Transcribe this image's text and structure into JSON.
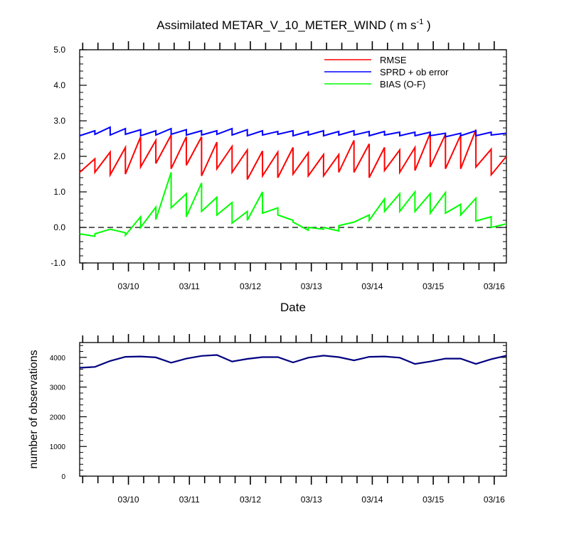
{
  "chart_data": [
    {
      "type": "line",
      "title": "Assimilated METAR_V_10_METER_WIND",
      "title_units": "( m s",
      "title_units_sup": "-1",
      "title_units_close": ")",
      "xlabel": "Date",
      "ylabel": "",
      "x_unit": "day (March)",
      "xlim": [
        9.2,
        16.2
      ],
      "ylim": [
        -1.0,
        5.0
      ],
      "y_ticks": [
        -1.0,
        0.0,
        1.0,
        2.0,
        3.0,
        4.0,
        5.0
      ],
      "y_tick_labels": [
        "-1.0",
        "0.0",
        "1.0",
        "2.0",
        "3.0",
        "4.0",
        "5.0"
      ],
      "x_ticks": [
        10,
        11,
        12,
        13,
        14,
        15,
        16
      ],
      "x_tick_labels": [
        "03/10",
        "03/11",
        "03/12",
        "03/13",
        "03/14",
        "03/15",
        "03/16"
      ],
      "zero_line": true,
      "grid": false,
      "legend_position": "top-right",
      "series": [
        {
          "name": "RMSE",
          "color": "#ff0000",
          "points": [
            [
              9.2,
              1.55
            ],
            [
              9.45,
              1.93
            ],
            [
              9.45,
              1.55
            ],
            [
              9.7,
              2.12
            ],
            [
              9.7,
              1.48
            ],
            [
              9.95,
              2.25
            ],
            [
              9.95,
              1.5
            ],
            [
              10.2,
              2.55
            ],
            [
              10.2,
              1.7
            ],
            [
              10.45,
              2.45
            ],
            [
              10.45,
              1.8
            ],
            [
              10.7,
              2.6
            ],
            [
              10.7,
              1.65
            ],
            [
              10.95,
              2.55
            ],
            [
              10.95,
              1.75
            ],
            [
              11.2,
              2.55
            ],
            [
              11.2,
              1.45
            ],
            [
              11.45,
              2.4
            ],
            [
              11.45,
              1.65
            ],
            [
              11.7,
              2.28
            ],
            [
              11.7,
              1.55
            ],
            [
              11.95,
              2.18
            ],
            [
              11.95,
              1.35
            ],
            [
              12.2,
              2.15
            ],
            [
              12.2,
              1.45
            ],
            [
              12.45,
              2.12
            ],
            [
              12.45,
              1.4
            ],
            [
              12.7,
              2.25
            ],
            [
              12.7,
              1.5
            ],
            [
              12.95,
              2.1
            ],
            [
              12.95,
              1.45
            ],
            [
              13.2,
              2.05
            ],
            [
              13.2,
              1.45
            ],
            [
              13.45,
              2.05
            ],
            [
              13.45,
              1.55
            ],
            [
              13.7,
              2.45
            ],
            [
              13.7,
              1.55
            ],
            [
              13.95,
              2.35
            ],
            [
              13.95,
              1.4
            ],
            [
              14.2,
              2.25
            ],
            [
              14.2,
              1.6
            ],
            [
              14.45,
              2.18
            ],
            [
              14.45,
              1.55
            ],
            [
              14.7,
              2.25
            ],
            [
              14.7,
              1.6
            ],
            [
              14.95,
              2.65
            ],
            [
              14.95,
              1.7
            ],
            [
              15.2,
              2.62
            ],
            [
              15.2,
              1.65
            ],
            [
              15.45,
              2.6
            ],
            [
              15.45,
              1.65
            ],
            [
              15.7,
              2.75
            ],
            [
              15.7,
              1.7
            ],
            [
              15.95,
              2.2
            ],
            [
              15.95,
              1.48
            ],
            [
              16.2,
              2.0
            ]
          ]
        },
        {
          "name": "SPRD + ob error",
          "color": "#0000ff",
          "points": [
            [
              9.2,
              2.58
            ],
            [
              9.45,
              2.72
            ],
            [
              9.45,
              2.62
            ],
            [
              9.7,
              2.82
            ],
            [
              9.7,
              2.6
            ],
            [
              9.95,
              2.78
            ],
            [
              9.95,
              2.62
            ],
            [
              10.2,
              2.75
            ],
            [
              10.2,
              2.58
            ],
            [
              10.45,
              2.72
            ],
            [
              10.45,
              2.6
            ],
            [
              10.7,
              2.78
            ],
            [
              10.7,
              2.62
            ],
            [
              10.95,
              2.75
            ],
            [
              10.95,
              2.6
            ],
            [
              11.2,
              2.72
            ],
            [
              11.2,
              2.6
            ],
            [
              11.45,
              2.72
            ],
            [
              11.45,
              2.62
            ],
            [
              11.7,
              2.78
            ],
            [
              11.7,
              2.6
            ],
            [
              11.95,
              2.75
            ],
            [
              11.95,
              2.58
            ],
            [
              12.2,
              2.72
            ],
            [
              12.2,
              2.6
            ],
            [
              12.45,
              2.7
            ],
            [
              12.45,
              2.62
            ],
            [
              12.7,
              2.72
            ],
            [
              12.7,
              2.58
            ],
            [
              12.95,
              2.7
            ],
            [
              12.95,
              2.6
            ],
            [
              13.2,
              2.72
            ],
            [
              13.2,
              2.58
            ],
            [
              13.45,
              2.7
            ],
            [
              13.45,
              2.6
            ],
            [
              13.7,
              2.72
            ],
            [
              13.7,
              2.6
            ],
            [
              13.95,
              2.7
            ],
            [
              13.95,
              2.58
            ],
            [
              14.2,
              2.7
            ],
            [
              14.2,
              2.6
            ],
            [
              14.45,
              2.68
            ],
            [
              14.45,
              2.58
            ],
            [
              14.7,
              2.68
            ],
            [
              14.7,
              2.58
            ],
            [
              14.95,
              2.68
            ],
            [
              14.95,
              2.58
            ],
            [
              15.2,
              2.65
            ],
            [
              15.2,
              2.55
            ],
            [
              15.45,
              2.65
            ],
            [
              15.45,
              2.58
            ],
            [
              15.7,
              2.72
            ],
            [
              15.7,
              2.58
            ],
            [
              15.95,
              2.68
            ],
            [
              15.95,
              2.6
            ],
            [
              16.2,
              2.65
            ]
          ]
        },
        {
          "name": "BIAS (O-F)",
          "color": "#00ff00",
          "points": [
            [
              9.2,
              -0.18
            ],
            [
              9.45,
              -0.25
            ],
            [
              9.45,
              -0.18
            ],
            [
              9.7,
              -0.05
            ],
            [
              9.95,
              -0.15
            ],
            [
              9.95,
              -0.22
            ],
            [
              10.2,
              0.3
            ],
            [
              10.2,
              0.0
            ],
            [
              10.45,
              0.57
            ],
            [
              10.45,
              0.22
            ],
            [
              10.7,
              1.55
            ],
            [
              10.7,
              0.55
            ],
            [
              10.95,
              0.95
            ],
            [
              10.95,
              0.3
            ],
            [
              11.2,
              1.25
            ],
            [
              11.2,
              0.45
            ],
            [
              11.45,
              0.85
            ],
            [
              11.45,
              0.35
            ],
            [
              11.7,
              0.7
            ],
            [
              11.7,
              0.12
            ],
            [
              11.95,
              0.45
            ],
            [
              11.95,
              0.2
            ],
            [
              12.2,
              1.0
            ],
            [
              12.2,
              0.4
            ],
            [
              12.45,
              0.55
            ],
            [
              12.45,
              0.35
            ],
            [
              12.7,
              0.2
            ],
            [
              12.7,
              0.15
            ],
            [
              12.95,
              -0.08
            ],
            [
              12.95,
              0.0
            ],
            [
              13.2,
              -0.05
            ],
            [
              13.2,
              0.0
            ],
            [
              13.45,
              -0.1
            ],
            [
              13.45,
              0.05
            ],
            [
              13.7,
              0.15
            ],
            [
              13.95,
              0.35
            ],
            [
              13.95,
              0.2
            ],
            [
              14.2,
              0.8
            ],
            [
              14.2,
              0.45
            ],
            [
              14.45,
              0.95
            ],
            [
              14.45,
              0.45
            ],
            [
              14.7,
              1.0
            ],
            [
              14.7,
              0.45
            ],
            [
              14.95,
              0.95
            ],
            [
              14.95,
              0.4
            ],
            [
              15.2,
              0.98
            ],
            [
              15.2,
              0.4
            ],
            [
              15.45,
              0.65
            ],
            [
              15.45,
              0.35
            ],
            [
              15.7,
              0.82
            ],
            [
              15.7,
              0.18
            ],
            [
              15.95,
              0.3
            ],
            [
              15.95,
              0.0
            ],
            [
              16.2,
              0.1
            ]
          ]
        }
      ]
    },
    {
      "type": "line",
      "title": "",
      "xlabel": "",
      "ylabel": "number of observations",
      "x_unit": "day (March)",
      "xlim": [
        9.2,
        16.2
      ],
      "ylim": [
        0,
        4500
      ],
      "y_ticks": [
        0,
        1000,
        2000,
        3000,
        4000
      ],
      "y_tick_labels": [
        "0",
        "1000",
        "2000",
        "3000",
        "4000"
      ],
      "x_ticks": [
        10,
        11,
        12,
        13,
        14,
        15,
        16
      ],
      "x_tick_labels": [
        "03/10",
        "03/11",
        "03/12",
        "03/13",
        "03/14",
        "03/15",
        "03/16"
      ],
      "grid": false,
      "series": [
        {
          "color": "#000080",
          "x": [
            9.2,
            9.45,
            9.7,
            9.95,
            10.2,
            10.45,
            10.7,
            10.95,
            11.2,
            11.45,
            11.7,
            11.95,
            12.2,
            12.45,
            12.7,
            12.95,
            13.2,
            13.45,
            13.7,
            13.95,
            14.2,
            14.45,
            14.7,
            14.95,
            15.2,
            15.45,
            15.7,
            15.95,
            16.2
          ],
          "values": [
            3650,
            3680,
            3880,
            4020,
            4030,
            4000,
            3820,
            3960,
            4050,
            4080,
            3860,
            3950,
            4010,
            4010,
            3830,
            3990,
            4060,
            4010,
            3900,
            4020,
            4030,
            3990,
            3780,
            3860,
            3960,
            3960,
            3780,
            3940,
            4060
          ]
        }
      ]
    }
  ]
}
